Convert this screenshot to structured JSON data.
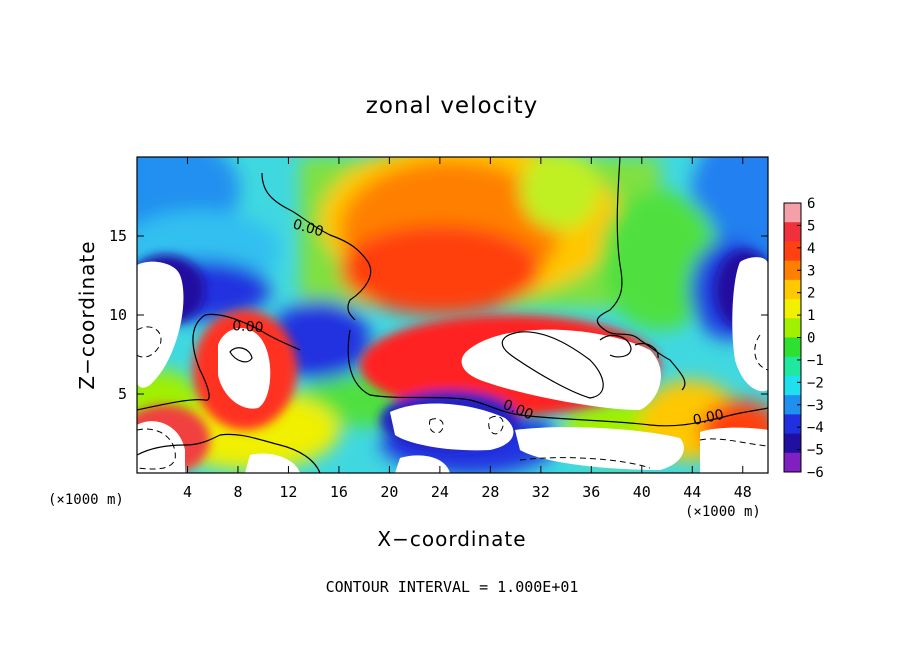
{
  "chart_data": {
    "type": "heatmap",
    "title": "zonal velocity",
    "xlabel": "X−coordinate",
    "ylabel": "Z−coordinate",
    "x_unit_left": "(×1000 m)",
    "x_unit_right": "(×1000 m)",
    "footer": "CONTOUR INTERVAL = 1.000E+01",
    "xlim": [
      0,
      50
    ],
    "ylim": [
      0,
      20
    ],
    "x_ticks": [
      4,
      8,
      12,
      16,
      20,
      24,
      28,
      32,
      36,
      40,
      44,
      48
    ],
    "y_ticks": [
      5,
      10,
      15
    ],
    "colorbar": {
      "min": -6,
      "max": 6,
      "ticks": [
        "6",
        "5",
        "4",
        "3",
        "2",
        "1",
        "0",
        "−1",
        "−2",
        "−3",
        "−4",
        "−5",
        "−6"
      ],
      "colors": [
        "#f4a0a8",
        "#f0303c",
        "#ff4010",
        "#ff8000",
        "#ffc800",
        "#f0f000",
        "#a0f000",
        "#30e030",
        "#20e8a0",
        "#20e0f0",
        "#2090f0",
        "#2030e0",
        "#2010a0",
        "#8020c0"
      ]
    },
    "contour_labels": [
      "0.00",
      "0.00",
      "0.00",
      "0.00"
    ],
    "grid": false,
    "legend": "colorbar-right"
  }
}
